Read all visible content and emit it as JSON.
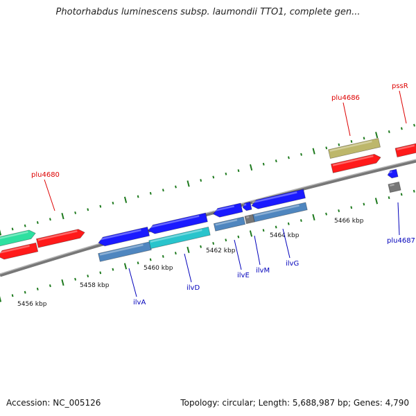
{
  "map": {
    "title": "Photorhabdus luminescens subsp. laumondii TTO1, complete gen...",
    "footer": {
      "accession": "Accession: NC_005126",
      "summary": "Topology: circular; Length: 5,688,987 bp; Genes: 4,790"
    },
    "colors": {
      "backbone": "#8a8a8a",
      "ticks": "#1e7a1e",
      "gene_red": "#ff1a1a",
      "gene_blue": "#1a1aff",
      "gene_cyan": "#29c4cc",
      "gene_steel": "#4f86bf",
      "gene_teal": "#2ee0a0",
      "gene_khaki": "#bdb76b",
      "gene_gray": "#777777",
      "label_red": "#dd0000",
      "label_blue": "#0000bb"
    },
    "positions": [
      {
        "label": "5456 kbp"
      },
      {
        "label": "5458 kbp"
      },
      {
        "label": "5460 kbp"
      },
      {
        "label": "5462 kbp"
      },
      {
        "label": "5464 kbp"
      },
      {
        "label": "5466 kbp"
      }
    ],
    "gene_labels": [
      {
        "text": "plu4680",
        "color": "#dd0000"
      },
      {
        "text": "plu4686",
        "color": "#dd0000"
      },
      {
        "text": "pssR",
        "color": "#dd0000"
      },
      {
        "text": "ilvA",
        "color": "#0000bb"
      },
      {
        "text": "ilvD",
        "color": "#0000bb"
      },
      {
        "text": "ilvE",
        "color": "#0000bb"
      },
      {
        "text": "ilvM",
        "color": "#0000bb"
      },
      {
        "text": "ilvG",
        "color": "#0000bb"
      },
      {
        "text": "plu4687",
        "color": "#0000bb"
      }
    ]
  }
}
